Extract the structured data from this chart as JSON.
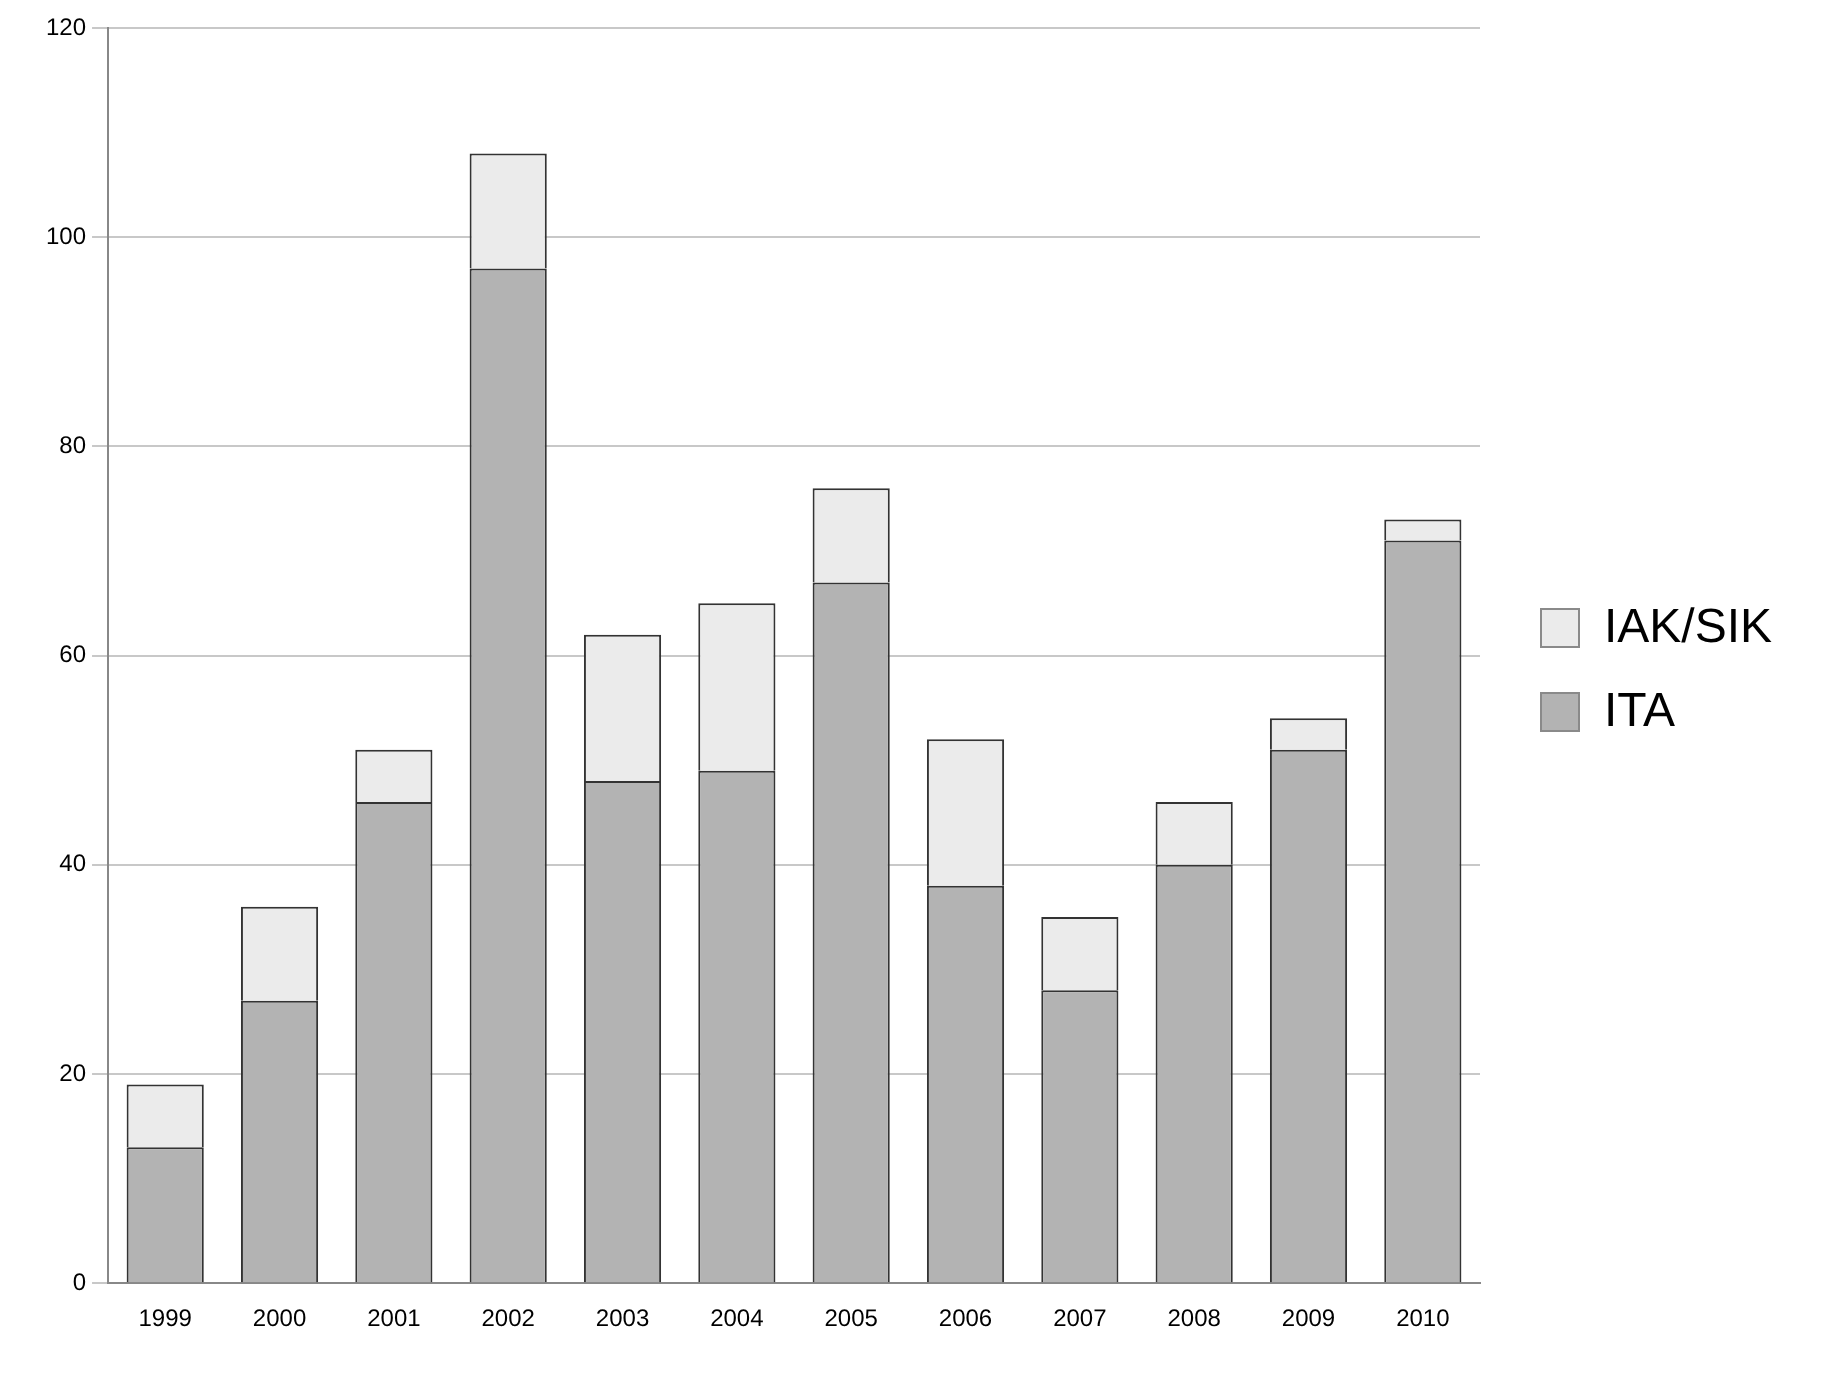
{
  "chart_data": {
    "type": "bar",
    "stacked": true,
    "categories": [
      "1999",
      "2000",
      "2001",
      "2002",
      "2003",
      "2004",
      "2005",
      "2006",
      "2007",
      "2008",
      "2009",
      "2010"
    ],
    "series": [
      {
        "name": "ITA",
        "color": "#b3b3b3",
        "values": [
          13,
          27,
          46,
          97,
          48,
          49,
          67,
          38,
          28,
          40,
          51,
          71
        ]
      },
      {
        "name": "IAK/SIK",
        "color": "#ebebeb",
        "values": [
          6,
          9,
          5,
          11,
          14,
          16,
          9,
          14,
          7,
          6,
          3,
          2
        ]
      }
    ],
    "ylim": [
      0,
      120
    ],
    "yticks": [
      0,
      20,
      40,
      60,
      80,
      100,
      120
    ],
    "grid": "y",
    "legend": "right"
  }
}
